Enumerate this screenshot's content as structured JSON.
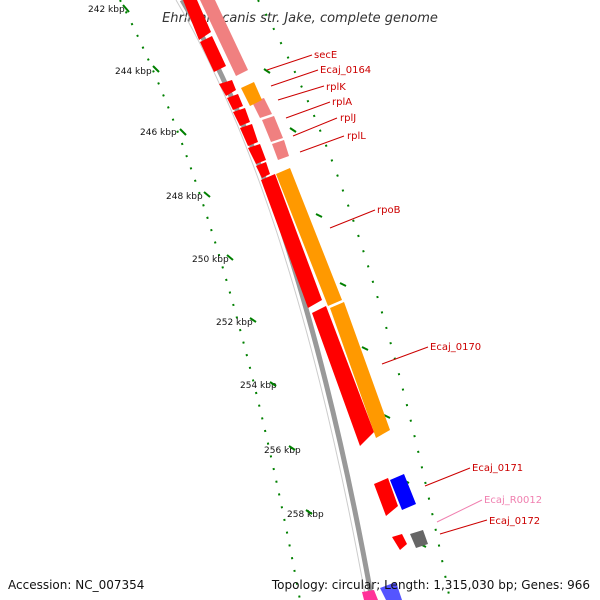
{
  "title": "Ehrlichia canis str. Jake, complete genome",
  "footer": {
    "accession": "Accession: NC_007354",
    "topology": "Topology: circular; Length: 1,315,030 bp; Genes: 966"
  },
  "scale_labels": [
    "242 kbp",
    "244 kbp",
    "246 kbp",
    "248 kbp",
    "250 kbp",
    "252 kbp",
    "254 kbp",
    "256 kbp",
    "258 kbp"
  ],
  "gene_labels": [
    {
      "text": "secE",
      "color": "#cc0000"
    },
    {
      "text": "Ecaj_0164",
      "color": "#cc0000"
    },
    {
      "text": "rplK",
      "color": "#cc0000"
    },
    {
      "text": "rplA",
      "color": "#cc0000"
    },
    {
      "text": "rplJ",
      "color": "#cc0000"
    },
    {
      "text": "rplL",
      "color": "#cc0000"
    },
    {
      "text": "rpoB",
      "color": "#cc0000"
    },
    {
      "text": "Ecaj_0170",
      "color": "#cc0000"
    },
    {
      "text": "Ecaj_0171",
      "color": "#cc0000"
    },
    {
      "text": "Ecaj_R0012",
      "color": "#f080b0"
    },
    {
      "text": "Ecaj_0172",
      "color": "#cc0000"
    }
  ],
  "colors": {
    "cds": "#ff0000",
    "cds_light": "#f08080",
    "cog": "#ff9900",
    "blue": "#0000ff",
    "gray": "#666666",
    "tick": "#008000",
    "backbone": "#999999"
  }
}
